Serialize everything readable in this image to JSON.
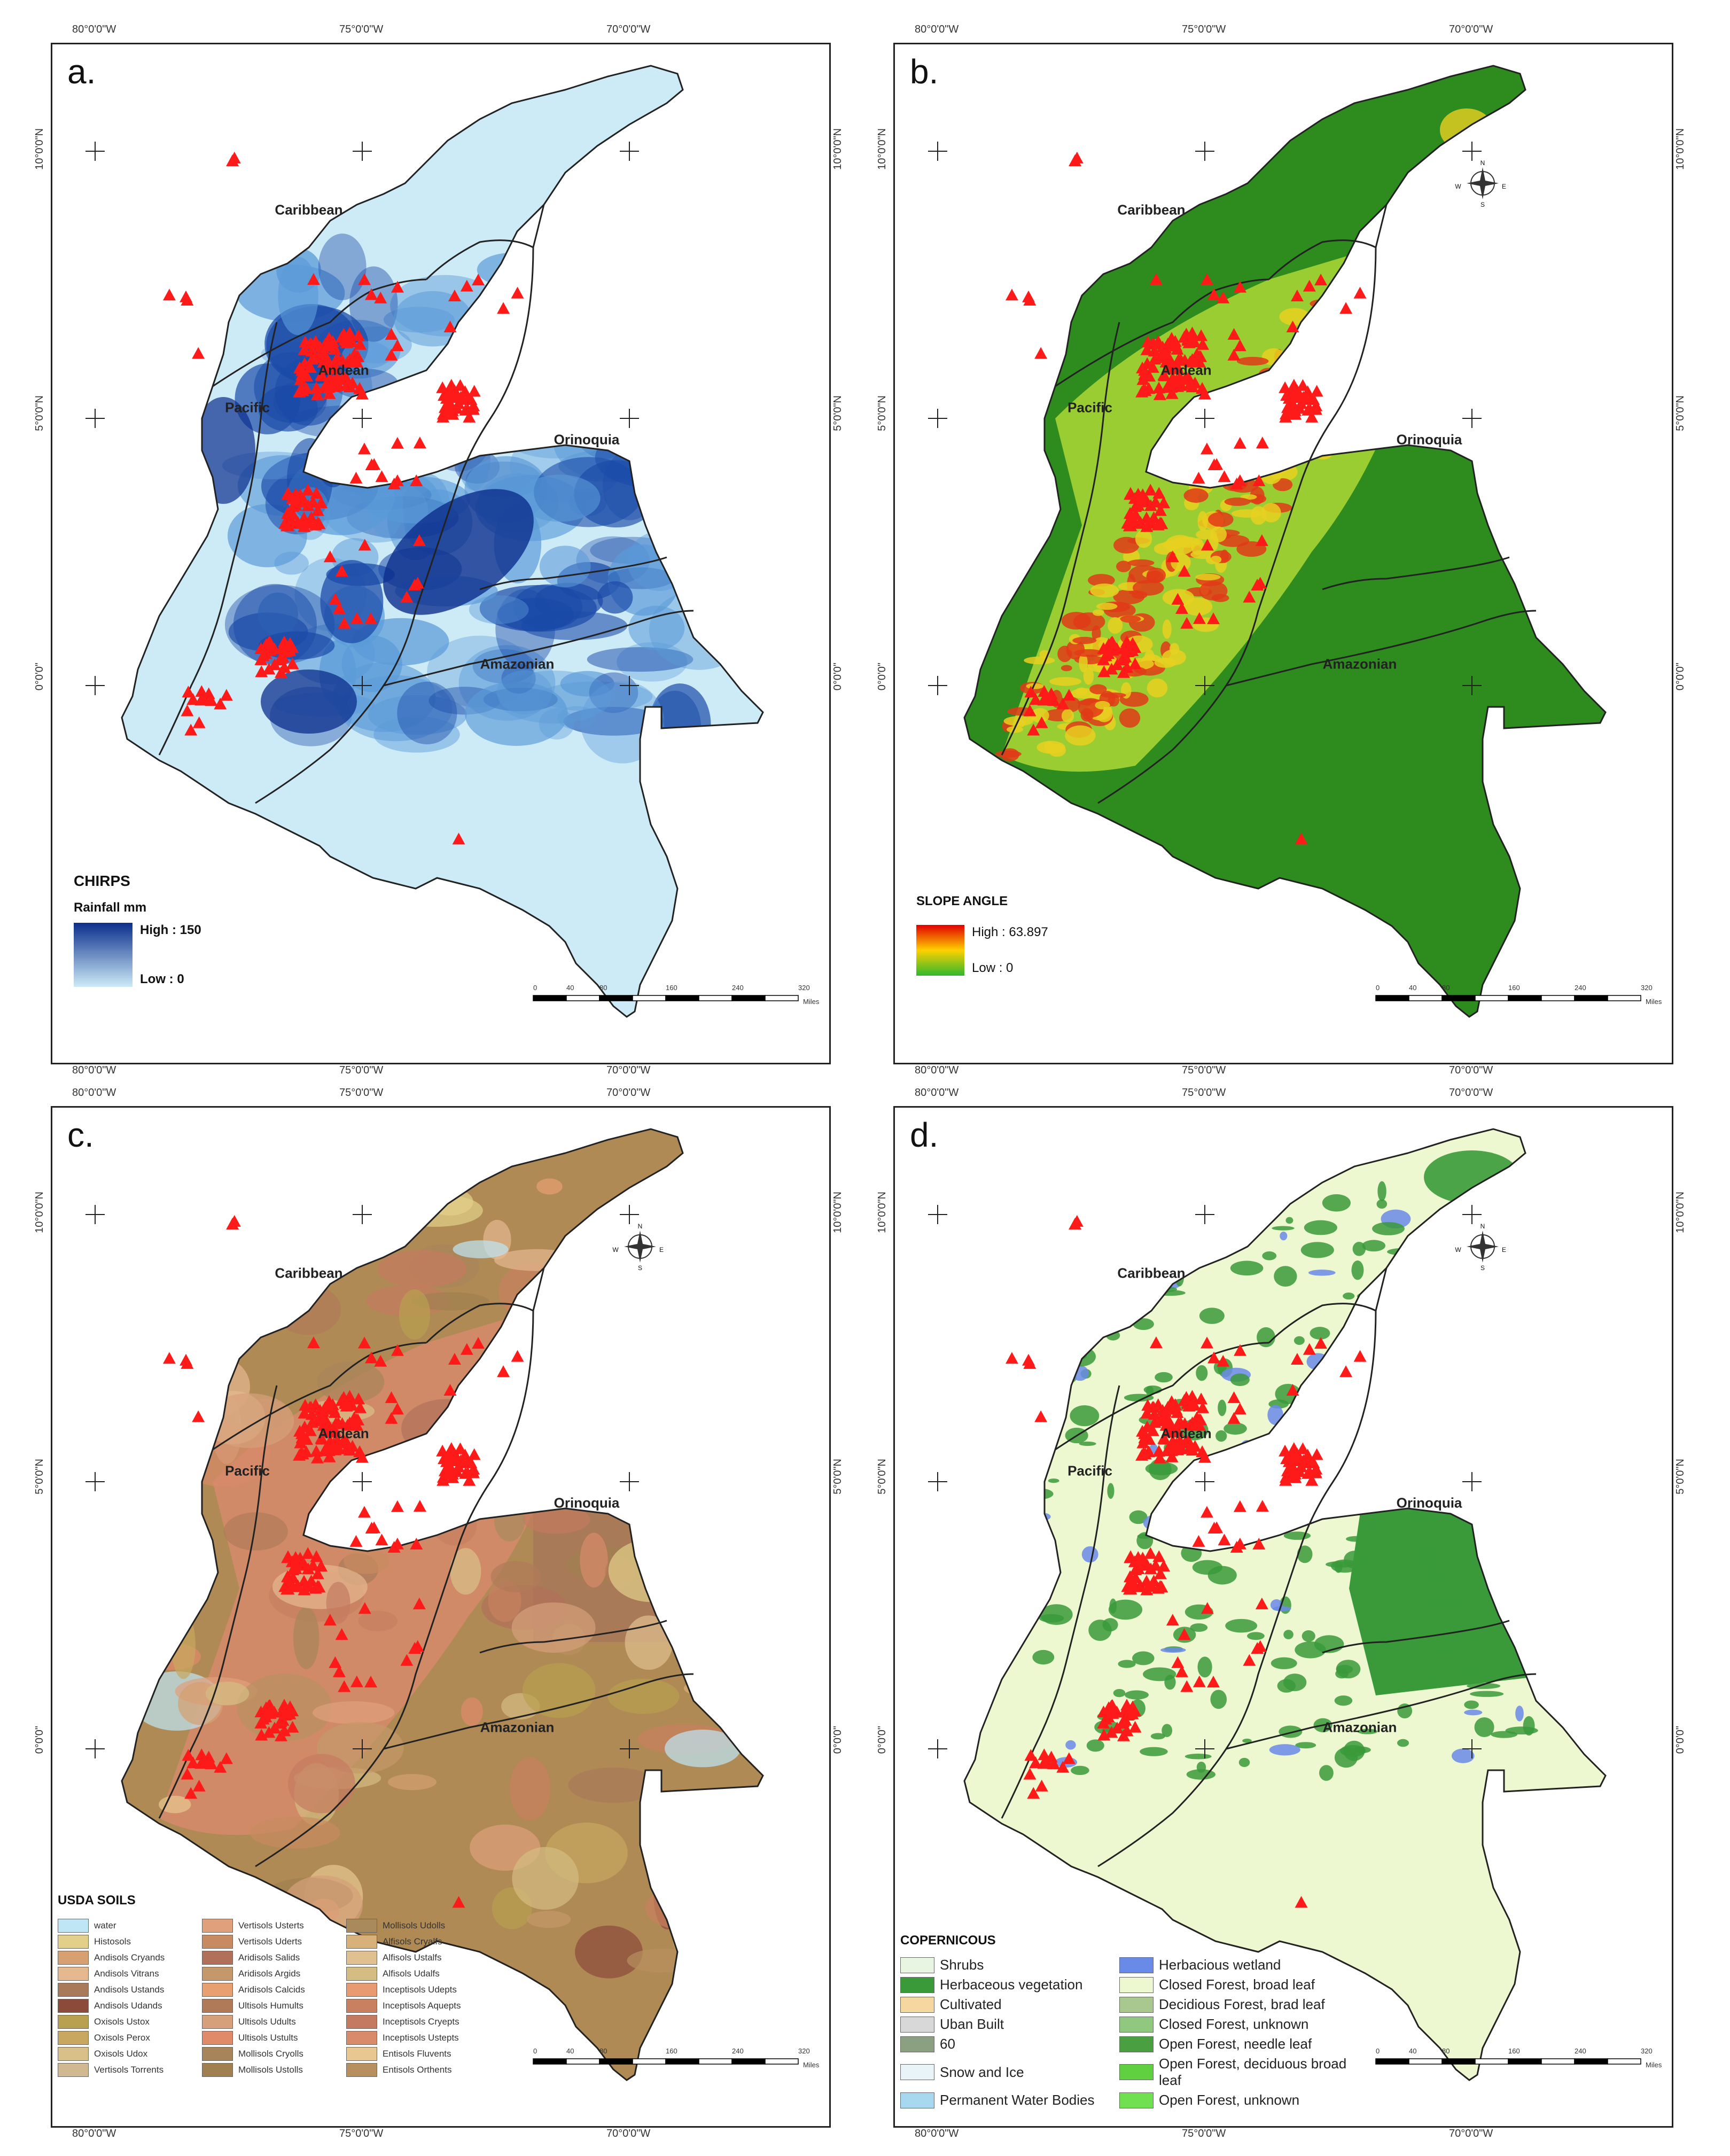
{
  "axes": {
    "lon_top": [
      "80°0'0\"W",
      "75°0'0\"W",
      "70°0'0\"W"
    ],
    "lat_side": [
      "10°0'0\"N",
      "5°0'0\"N",
      "0°0'0\""
    ]
  },
  "regions": [
    "Caribbean",
    "Andean",
    "Pacific",
    "Orinoquia",
    "Amazonian"
  ],
  "scale": {
    "ticks": [
      "0",
      "40",
      "80",
      "160",
      "240",
      "320"
    ],
    "unit": "Miles"
  },
  "compass": {
    "n": "N",
    "s": "S",
    "e": "E",
    "w": "W"
  },
  "panel_a": {
    "letter": "a.",
    "legend_title": "CHIRPS",
    "legend_subtitle": "Rainfall mm",
    "high": "High : 150",
    "low": "Low : 0",
    "colors": {
      "low": "#cdeaf7",
      "mid": "#5a9ad8",
      "high": "#0b2e8c",
      "dark": "#1a4aa8"
    }
  },
  "panel_b": {
    "letter": "b.",
    "legend_title": "SLOPE ANGLE",
    "high": "High : 63.897",
    "low": "Low : 0",
    "colors": {
      "base": "#2e8b1e",
      "mid": "#9acd32",
      "high": "#e8d020",
      "steep": "#e03a18"
    }
  },
  "panel_c": {
    "letter": "c.",
    "legend_title": "USDA SOILS",
    "items": [
      {
        "label": "water",
        "color": "#bfe6f5"
      },
      {
        "label": "Vertisols Usterts",
        "color": "#e0a07c"
      },
      {
        "label": "Mollisols Udolls",
        "color": "#a88a5c"
      },
      {
        "label": "Histosols",
        "color": "#e2d08a"
      },
      {
        "label": "Vertisols Uderts",
        "color": "#c88a60"
      },
      {
        "label": "Alfisols Cryalfs",
        "color": "#d8b07a"
      },
      {
        "label": "Andisols Cryands",
        "color": "#d6a070"
      },
      {
        "label": "Aridisols Salids",
        "color": "#b0705a"
      },
      {
        "label": "Alfisols Ustalfs",
        "color": "#e0c090"
      },
      {
        "label": "Andisols Vitrans",
        "color": "#e6b890"
      },
      {
        "label": "Aridisols Argids",
        "color": "#c4986a"
      },
      {
        "label": "Alfisols Udalfs",
        "color": "#d4bc82"
      },
      {
        "label": "Andisols Ustands",
        "color": "#a87a5a"
      },
      {
        "label": "Aridisols Calcids",
        "color": "#e8a070"
      },
      {
        "label": "Inceptisols Udepts",
        "color": "#e89a70"
      },
      {
        "label": "Andisols Udands",
        "color": "#8c4a3a"
      },
      {
        "label": "Ultisols Humults",
        "color": "#b07a58"
      },
      {
        "label": "Inceptisols Aquepts",
        "color": "#c88060"
      },
      {
        "label": "Oxisols Ustox",
        "color": "#b8a050"
      },
      {
        "label": "Ultisols Udults",
        "color": "#d6a07a"
      },
      {
        "label": "Inceptisols Cryepts",
        "color": "#c47a60"
      },
      {
        "label": "Oxisols Perox",
        "color": "#c8a860"
      },
      {
        "label": "Ultisols Ustults",
        "color": "#e08a6a"
      },
      {
        "label": "Inceptisols Ustepts",
        "color": "#d88a6a"
      },
      {
        "label": "Oxisols Udox",
        "color": "#d8c088"
      },
      {
        "label": "Mollisols Cryolls",
        "color": "#a8845a"
      },
      {
        "label": "Entisols Fluvents",
        "color": "#e8c890"
      },
      {
        "label": "Vertisols Torrents",
        "color": "#d0b890"
      },
      {
        "label": "Mollisols Ustolls",
        "color": "#a08050"
      },
      {
        "label": "Entisols Orthents",
        "color": "#b89060"
      }
    ]
  },
  "panel_d": {
    "letter": "d.",
    "legend_title": "COPERNICOUS",
    "items": [
      {
        "label": "Shrubs",
        "color": "#e8f5e0"
      },
      {
        "label": "Herbacious wetland",
        "color": "#6a8ae8"
      },
      {
        "label": "Herbaceous vegetation",
        "color": "#3a9a3a"
      },
      {
        "label": "Closed Forest, broad leaf",
        "color": "#eef8d0"
      },
      {
        "label": "Cultivated",
        "color": "#f5d8a0"
      },
      {
        "label": "Decidious Forest, brad leaf",
        "color": "#a8c890"
      },
      {
        "label": "Uban Built",
        "color": "#d8d8d8"
      },
      {
        "label": "Closed Forest, unknown",
        "color": "#90c880"
      },
      {
        "label": "60",
        "color": "#8aa080"
      },
      {
        "label": "Open Forest, needle leaf",
        "color": "#4aa040"
      },
      {
        "label": "Snow and Ice",
        "color": "#e8f4f8"
      },
      {
        "label": "Open Forest, deciduous broad leaf",
        "color": "#60d040"
      },
      {
        "label": "Permanent Water Bodies",
        "color": "#a8d8f0"
      },
      {
        "label": "Open Forest, unknown",
        "color": "#70e050"
      }
    ],
    "colors": {
      "base": "#eef8d0",
      "forest": "#3a9a3a",
      "wetland": "#6a8ae8"
    }
  },
  "point_color": "#ff1a1a"
}
